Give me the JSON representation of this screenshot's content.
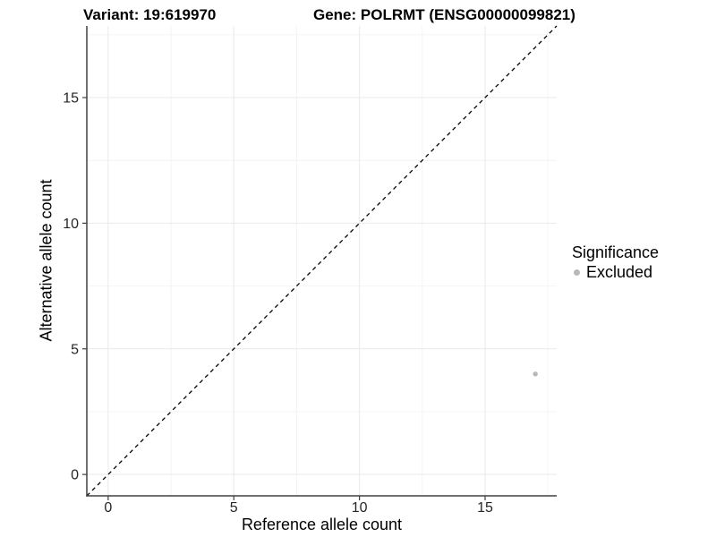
{
  "header": {
    "variant_title": "Variant: 19:619970",
    "gene_title": "Gene: POLRMT (ENSG00000099821)"
  },
  "chart_data": {
    "type": "scatter",
    "title": "Variant: 19:619970    Gene: POLRMT (ENSG00000099821)",
    "xlabel": "Reference allele count",
    "ylabel": "Alternative allele count",
    "xlim": [
      -0.85,
      17.85
    ],
    "ylim": [
      -0.85,
      17.85
    ],
    "x_major_ticks": [
      0,
      5,
      10,
      15
    ],
    "y_major_ticks": [
      0,
      5,
      10,
      15
    ],
    "x_minor_gridlines": [
      2.5,
      7.5,
      12.5,
      17.5
    ],
    "y_minor_gridlines": [
      2.5,
      7.5,
      12.5,
      17.5
    ],
    "grid": "major and minor, very light gray on white",
    "identity_line": {
      "slope": 1,
      "intercept": 0,
      "style": "dashed",
      "color": "#000000"
    },
    "series": [
      {
        "name": "Excluded",
        "color": "#b8b8b8",
        "points": [
          {
            "x": 17,
            "y": 4
          }
        ]
      }
    ],
    "legend": {
      "position": "right",
      "title": "Significance",
      "entries": [
        {
          "label": "Excluded",
          "color": "#b8b8b8"
        }
      ]
    }
  },
  "style_colors": {
    "axis_line": "#404040",
    "tick_label": "#262626",
    "major_gridline": "#e9e9e9",
    "minor_gridline": "#f4f4f4",
    "point": "#b8b8b8"
  }
}
